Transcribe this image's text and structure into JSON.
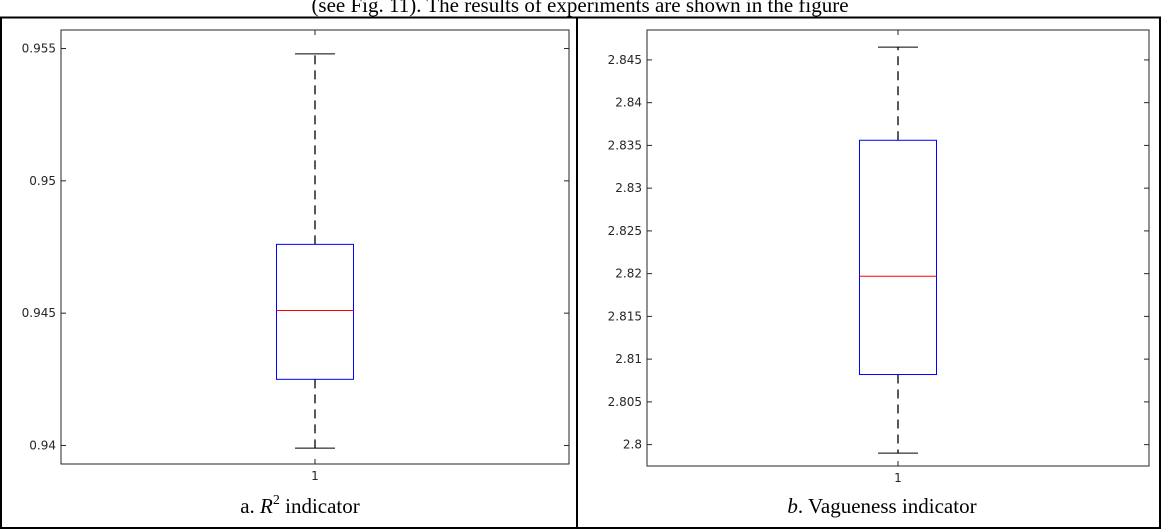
{
  "top_caption": "(see Fig. 11). The results of experiments are shown in the figure",
  "chart_data": [
    {
      "type": "box",
      "caption_prefix": "a. ",
      "caption_var": "R",
      "caption_sup": "2",
      "caption_suffix": " indicator",
      "categories": [
        "1"
      ],
      "box": {
        "whisker_low": 0.9399,
        "q1": 0.9425,
        "median": 0.9451,
        "q3": 0.9476,
        "whisker_high": 0.9548
      },
      "ylim": [
        0.9393,
        0.9557
      ],
      "yticks": [
        0.94,
        0.945,
        0.95,
        0.955
      ],
      "ytick_labels": [
        "0.94",
        "0.945",
        "0.95",
        "0.955"
      ],
      "colors": {
        "box": "#0000ff",
        "median": "#ff0000",
        "whisker": "#000000"
      }
    },
    {
      "type": "box",
      "caption_prefix": "",
      "caption_var": "b",
      "caption_sup": "",
      "caption_suffix": ". Vagueness indicator",
      "categories": [
        "1"
      ],
      "box": {
        "whisker_low": 2.799,
        "q1": 2.8082,
        "median": 2.8197,
        "q3": 2.8356,
        "whisker_high": 2.8465
      },
      "ylim": [
        2.7975,
        2.8485
      ],
      "yticks": [
        2.8,
        2.805,
        2.81,
        2.815,
        2.82,
        2.825,
        2.83,
        2.835,
        2.84,
        2.845
      ],
      "ytick_labels": [
        "2.8",
        "2.805",
        "2.81",
        "2.815",
        "2.82",
        "2.825",
        "2.83",
        "2.835",
        "2.84",
        "2.845"
      ],
      "colors": {
        "box": "#0000ff",
        "median": "#ff0000",
        "whisker": "#000000"
      }
    }
  ]
}
